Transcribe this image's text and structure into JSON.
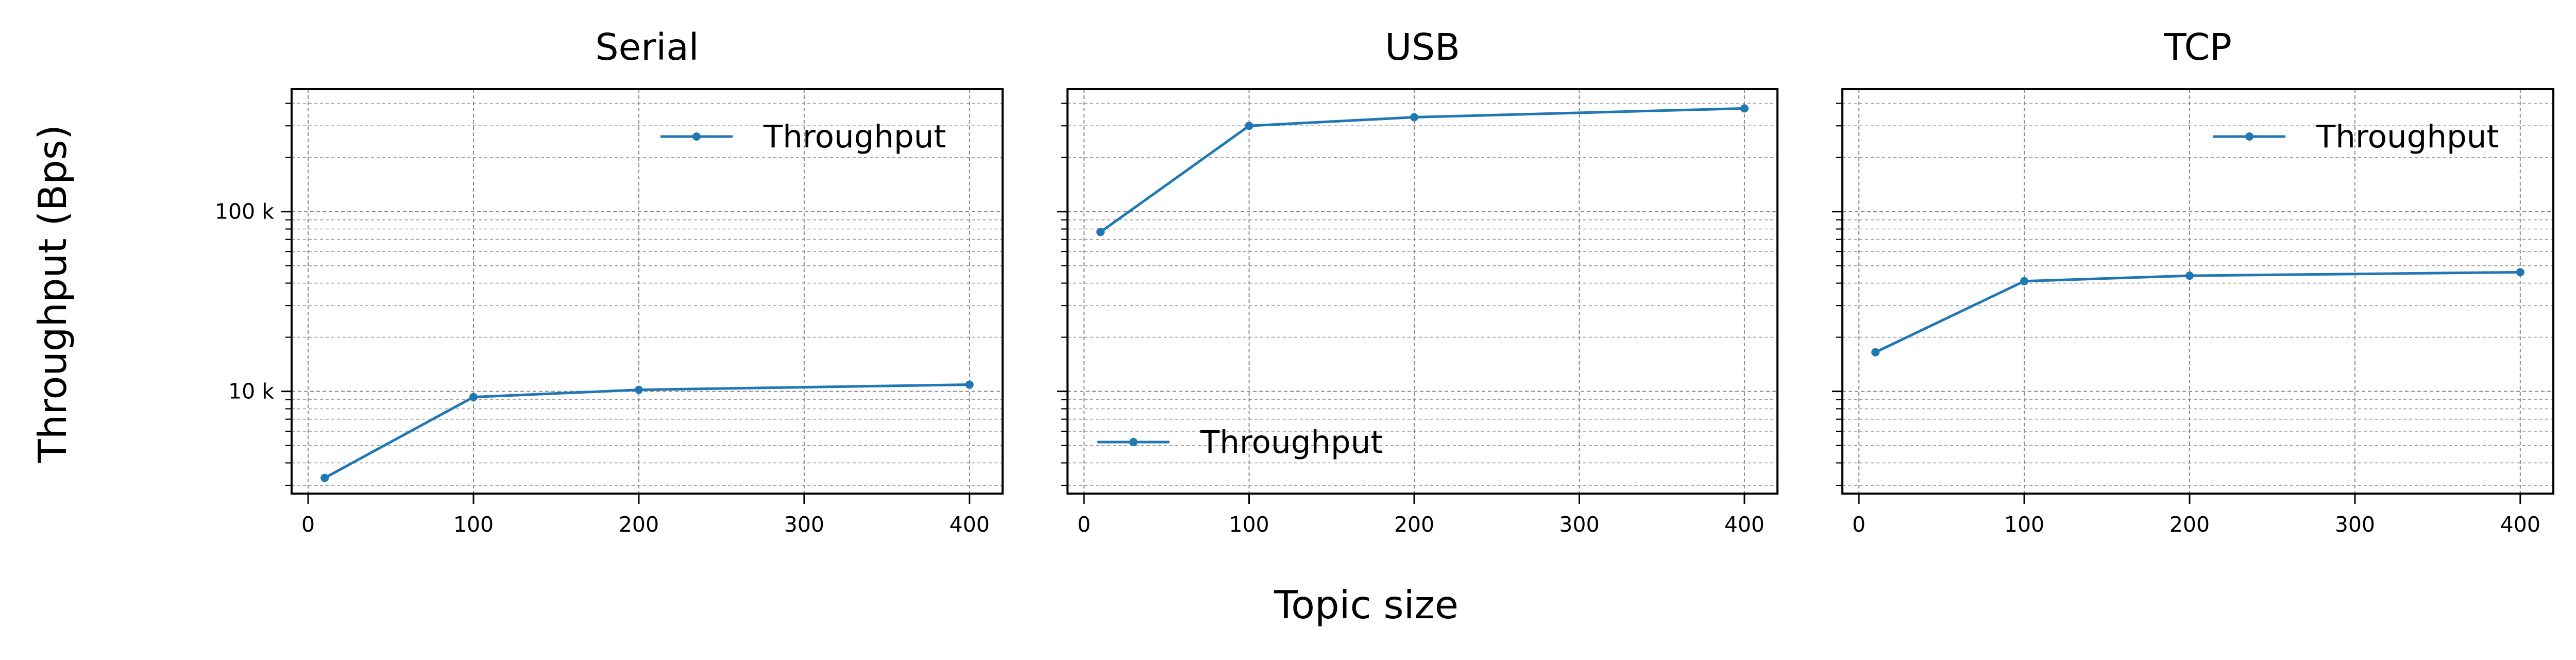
{
  "figure": {
    "xlabel": "Topic size",
    "ylabel": "Throughput (Bps)"
  },
  "colors": {
    "series": "#1f77b4"
  },
  "chart_data": [
    {
      "type": "line",
      "title": "Serial",
      "x": [
        10,
        100,
        200,
        400
      ],
      "series": [
        {
          "name": "Throughput",
          "values": [
            3300,
            9300,
            10200,
            10900
          ]
        }
      ],
      "xticks": [
        "0",
        "100",
        "200",
        "300",
        "400"
      ],
      "yticks": [
        "10 k",
        "100 k"
      ],
      "xlim": [
        -10,
        420
      ],
      "ylim": [
        2700,
        480000
      ],
      "yscale": "log",
      "grid": true,
      "legend": "upper right"
    },
    {
      "type": "line",
      "title": "USB",
      "x": [
        10,
        100,
        200,
        400
      ],
      "series": [
        {
          "name": "Throughput",
          "values": [
            77000,
            300000,
            335000,
            375000
          ]
        }
      ],
      "xticks": [
        "0",
        "100",
        "200",
        "300",
        "400"
      ],
      "yticks": [
        "",
        ""
      ],
      "xlim": [
        -10,
        420
      ],
      "ylim": [
        2700,
        480000
      ],
      "yscale": "log",
      "grid": true,
      "legend": "lower left"
    },
    {
      "type": "line",
      "title": "TCP",
      "x": [
        10,
        100,
        200,
        400
      ],
      "series": [
        {
          "name": "Throughput",
          "values": [
            16500,
            41000,
            44000,
            46000
          ]
        }
      ],
      "xticks": [
        "0",
        "100",
        "200",
        "300",
        "400"
      ],
      "yticks": [
        "",
        ""
      ],
      "xlim": [
        -10,
        420
      ],
      "ylim": [
        2700,
        480000
      ],
      "yscale": "log",
      "grid": true,
      "legend": "upper right"
    }
  ]
}
